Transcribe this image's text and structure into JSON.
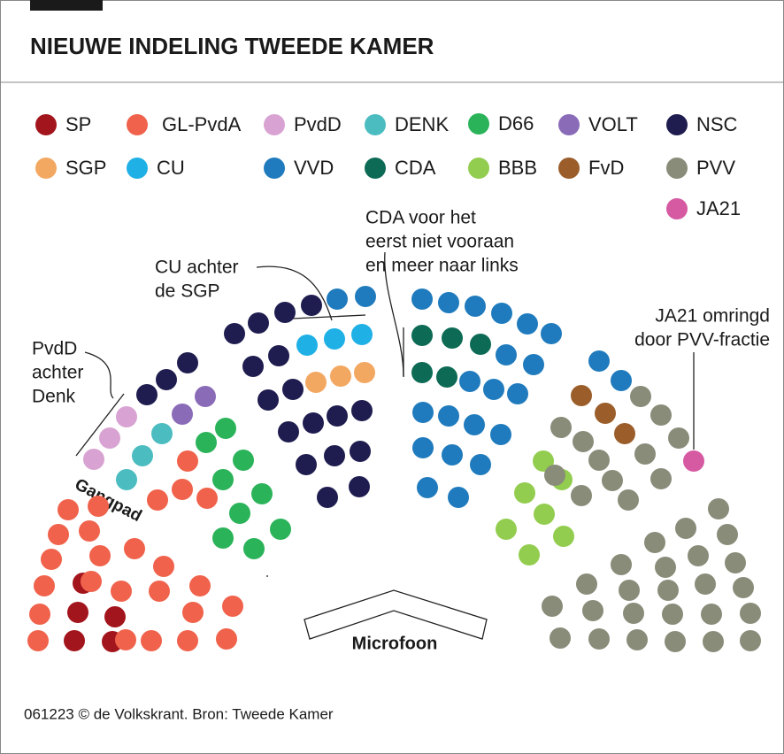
{
  "header": {
    "title": "NIEUWE INDELING TWEEDE KAMER"
  },
  "legend": [
    {
      "label": "SP",
      "color": "#a3151c"
    },
    {
      "label": "GL-PvdA",
      "color": "#f0624b"
    },
    {
      "label": "PvdD",
      "color": "#d8a3d2"
    },
    {
      "label": "DENK",
      "color": "#4bbcc0"
    },
    {
      "label": "D66",
      "color": "#2bb35a"
    },
    {
      "label": "VOLT",
      "color": "#8a6bb8"
    },
    {
      "label": "NSC",
      "color": "#1f1d4f"
    },
    {
      "label": "SGP",
      "color": "#f3a862"
    },
    {
      "label": "CU",
      "color": "#1fb0e6"
    },
    {
      "label": "VVD",
      "color": "#1f7bbd"
    },
    {
      "label": "CDA",
      "color": "#0d6b55"
    },
    {
      "label": "BBB",
      "color": "#93cd4f"
    },
    {
      "label": "FvD",
      "color": "#9b5e2b"
    },
    {
      "label": "PVV",
      "color": "#898c79"
    },
    {
      "label": "JA21",
      "color": "#d65aa2"
    }
  ],
  "annotations": {
    "cda": [
      "CDA voor het",
      "eerst niet vooraan",
      "en meer naar links"
    ],
    "cu": [
      "CU achter",
      "de SGP"
    ],
    "ja21": [
      "JA21 omringd",
      "door PVV-fractie"
    ],
    "pvdd": [
      "PvdD",
      "achter",
      "Denk"
    ],
    "aisle": "Gangpad",
    "microphone": "Microfoon"
  },
  "footer": "061223 © de Volkskrant. Bron: Tweede Kamer"
}
